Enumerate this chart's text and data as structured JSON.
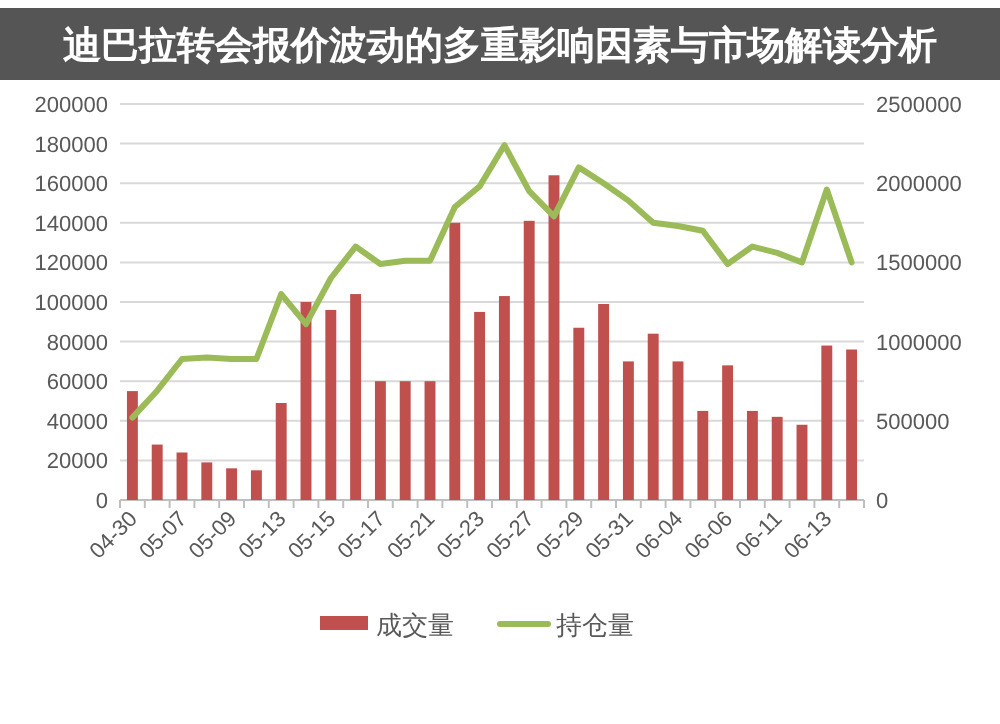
{
  "chart_data": {
    "type": "bar",
    "title": "迪巴拉转会报价波动的多重影响因素与市场解读分析",
    "categories": [
      "04-30",
      null,
      "05-07",
      null,
      "05-09",
      null,
      "05-13",
      null,
      "05-15",
      null,
      "05-17",
      null,
      "05-21",
      null,
      "05-23",
      null,
      "05-27",
      null,
      "05-29",
      null,
      "05-31",
      null,
      "06-04",
      null,
      "06-06",
      null,
      "06-11",
      null,
      "06-13",
      null
    ],
    "series": [
      {
        "name": "成交量",
        "color": "#c0504d",
        "values": [
          55000,
          28000,
          24000,
          19000,
          16000,
          15000,
          49000,
          100000,
          96000,
          104000,
          60000,
          60000,
          60000,
          140000,
          95000,
          103000,
          141000,
          164000,
          87000,
          99000,
          70000,
          84000,
          70000,
          45000,
          68000,
          45000,
          42000,
          38000,
          78000,
          76000
        ]
      },
      {
        "name": "持仓量",
        "type": "line",
        "axis": "y2",
        "color": "#9bbb59",
        "values": [
          520000,
          690000,
          890000,
          900000,
          890000,
          890000,
          1300000,
          1110000,
          1400000,
          1600000,
          1490000,
          1510000,
          1510000,
          1850000,
          1980000,
          2240000,
          1950000,
          1790000,
          2100000,
          2000000,
          1890000,
          1750000,
          1730000,
          1700000,
          1490000,
          1600000,
          1560000,
          1500000,
          1960000,
          1500000
        ]
      }
    ],
    "ylim": [
      0,
      200000
    ],
    "yticks": [
      0,
      20000,
      40000,
      60000,
      80000,
      100000,
      120000,
      140000,
      160000,
      180000,
      200000
    ],
    "y2lim": [
      0,
      2500000
    ],
    "y2ticks": [
      0,
      500000,
      1000000,
      1500000,
      2000000,
      2500000
    ],
    "grid": "y",
    "legend": "bottom"
  }
}
